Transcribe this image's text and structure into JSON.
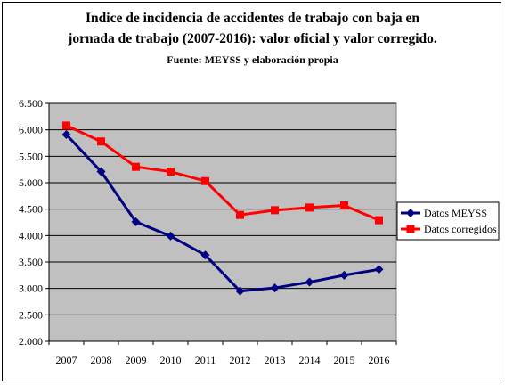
{
  "chart_data": {
    "type": "line",
    "title_line1": "Indice de incidencia de accidentes de trabajo con baja en",
    "title_line2": "jornada de trabajo (2007-2016): valor oficial y valor corregido.",
    "subtitle": "Fuente: MEYSS y elaboración propia",
    "categories": [
      "2007",
      "2008",
      "2009",
      "2010",
      "2011",
      "2012",
      "2013",
      "2014",
      "2015",
      "2016"
    ],
    "y_ticks": [
      "2.000",
      "2.500",
      "3.000",
      "3.500",
      "4.000",
      "4.500",
      "5.000",
      "5.500",
      "6.000",
      "6.500"
    ],
    "ylim": [
      2000,
      6500
    ],
    "grid": true,
    "plot_background": "#c0c0c0",
    "legend_position": "right",
    "series": [
      {
        "name": "Datos MEYSS",
        "color": "#000080",
        "marker": "diamond",
        "values": [
          5910,
          5210,
          4260,
          3990,
          3630,
          2950,
          3010,
          3120,
          3250,
          3360
        ]
      },
      {
        "name": "Datos corregidos",
        "color": "#ff0000",
        "marker": "square",
        "values": [
          6080,
          5780,
          5300,
          5210,
          5030,
          4390,
          4480,
          4530,
          4570,
          4290
        ]
      }
    ]
  }
}
